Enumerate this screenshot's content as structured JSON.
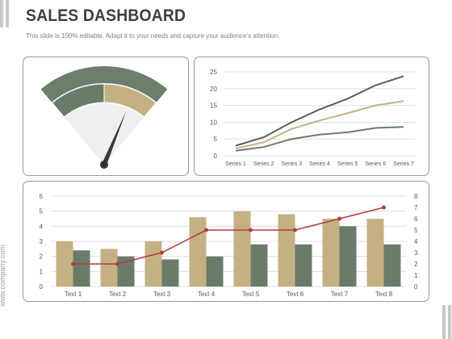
{
  "header": {
    "title": "SALES DASHBOARD",
    "subtitle": "This slide is 100% editable. Adapt it to your needs and capture your audience’s attention."
  },
  "watermark": "www.company.com",
  "colors": {
    "dark_green": "#6b7b6a",
    "tan": "#c4b183",
    "red_line": "#b33d3d",
    "gauge_bg": "#efefef",
    "grid": "#d9d9d9"
  },
  "chart_data": [
    {
      "type": "gauge",
      "segments": [
        "dark_green",
        "tan"
      ],
      "value_fraction": 0.78
    },
    {
      "type": "line",
      "categories": [
        "Series 1",
        "Series 2",
        "Series 3",
        "Series 4",
        "Series 5",
        "Series 6",
        "Series 7"
      ],
      "ylim": [
        0,
        25
      ],
      "yticks": [
        0,
        5,
        10,
        15,
        20,
        25
      ],
      "grid": true,
      "series": [
        {
          "color": "#59615a",
          "values": [
            3,
            5.5,
            10,
            13.8,
            17,
            21,
            23.7
          ]
        },
        {
          "color": "#c4b183",
          "values": [
            2.2,
            4,
            8,
            10.5,
            12.7,
            15,
            16.3
          ]
        },
        {
          "color": "#6b7b6a",
          "values": [
            1.5,
            2.6,
            5,
            6.3,
            7,
            8.3,
            8.6
          ]
        }
      ]
    },
    {
      "type": "bar",
      "categories": [
        "Text 1",
        "Text 2",
        "Text 3",
        "Text 4",
        "Text 5",
        "Text 6",
        "Text 7",
        "Text 8"
      ],
      "ylim": [
        0,
        6
      ],
      "yticks": [
        0,
        1,
        2,
        3,
        4,
        5,
        6
      ],
      "y2lim": [
        0,
        8
      ],
      "y2ticks": [
        0,
        1,
        2,
        3,
        4,
        5,
        6,
        7,
        8
      ],
      "grid": true,
      "series": [
        {
          "color": "#c4b183",
          "axis": "left",
          "values": [
            3,
            2.5,
            3,
            4.6,
            5,
            4.8,
            4.5,
            4.5
          ]
        },
        {
          "color": "#6b7b6a",
          "axis": "left",
          "values": [
            2.4,
            2,
            1.8,
            2,
            2.8,
            2.8,
            4,
            2.8
          ]
        },
        {
          "color": "#b33d3d",
          "axis": "right",
          "type": "line",
          "values": [
            2,
            2,
            3,
            5,
            5,
            5,
            6,
            7
          ]
        }
      ]
    }
  ]
}
